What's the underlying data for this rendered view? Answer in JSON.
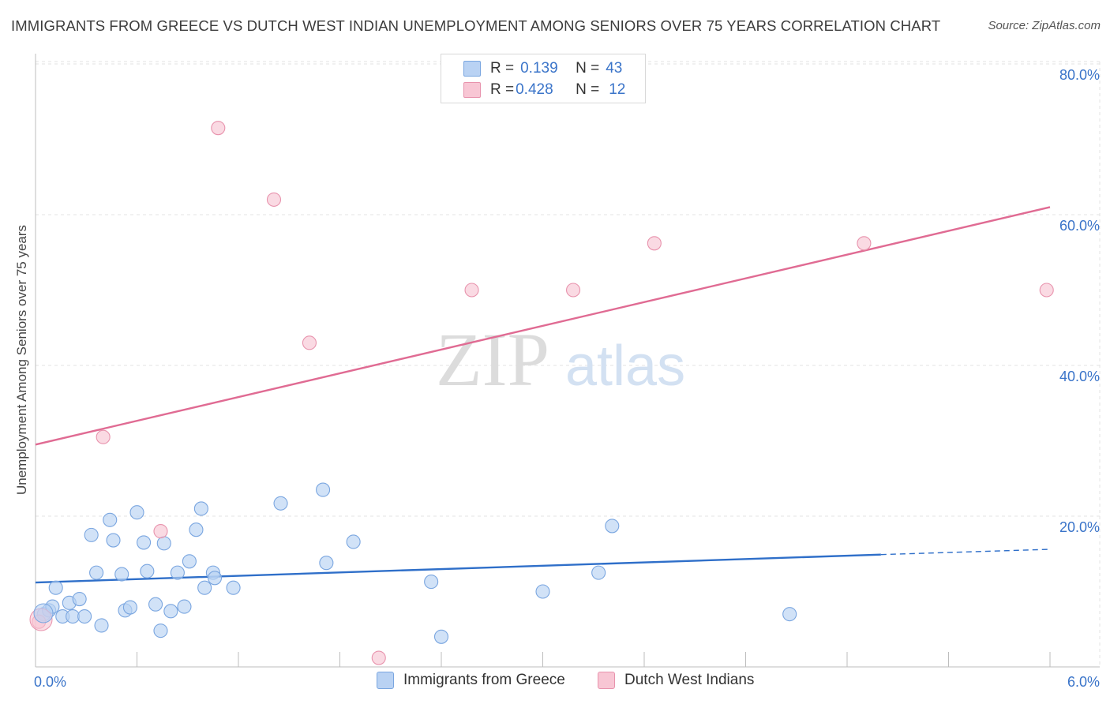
{
  "title": "IMMIGRANTS FROM GREECE VS DUTCH WEST INDIAN UNEMPLOYMENT AMONG SENIORS OVER 75 YEARS CORRELATION CHART",
  "source": "Source: ZipAtlas.com",
  "watermark": {
    "zip": "ZIP",
    "atlas": "atlas"
  },
  "legend": {
    "series1": {
      "r_label": "R = ",
      "r_value": "0.139",
      "n_label": "N = ",
      "n_value": "43"
    },
    "series2": {
      "r_label": "R = ",
      "r_value": "0.428",
      "n_label": "N = ",
      "n_value": "12"
    }
  },
  "bottom_legend": {
    "series1": "Immigrants from Greece",
    "series2": "Dutch West Indians"
  },
  "colors": {
    "blue_fill": "#b9d2f3",
    "blue_stroke": "#7aa6e0",
    "blue_line": "#2f6fc9",
    "pink_fill": "#f8c6d4",
    "pink_stroke": "#e893ad",
    "pink_line": "#e06b93",
    "axis_text": "#3a74c9",
    "grid": "#e3e3e3"
  },
  "chart_data": {
    "type": "scatter",
    "title": "IMMIGRANTS FROM GREECE VS DUTCH WEST INDIAN UNEMPLOYMENT AMONG SENIORS OVER 75 YEARS CORRELATION CHART",
    "xlabel": "",
    "ylabel": "Unemployment Among Seniors over 75 years",
    "xlim": [
      0,
      6.2
    ],
    "ylim": [
      0,
      82
    ],
    "x_ticks": [
      0,
      0.6,
      1.2,
      1.8,
      2.4,
      3.0,
      3.6,
      4.2,
      4.8,
      5.4,
      6.0
    ],
    "x_tick_labels": [
      {
        "value": 0,
        "label": "0.0%"
      },
      {
        "value": 6.0,
        "label": "6.0%"
      }
    ],
    "y_ticks": [
      {
        "value": 20,
        "label": "20.0%"
      },
      {
        "value": 40,
        "label": "40.0%"
      },
      {
        "value": 60,
        "label": "60.0%"
      },
      {
        "value": 80,
        "label": "80.0%"
      }
    ],
    "series": [
      {
        "name": "Immigrants from Greece",
        "color": "blue",
        "points": [
          [
            0.05,
            7.0
          ],
          [
            0.08,
            7.5
          ],
          [
            0.1,
            8.0
          ],
          [
            0.12,
            10.5
          ],
          [
            0.16,
            6.7
          ],
          [
            0.2,
            8.5
          ],
          [
            0.22,
            6.7
          ],
          [
            0.26,
            9.0
          ],
          [
            0.29,
            6.7
          ],
          [
            0.33,
            17.5
          ],
          [
            0.36,
            12.5
          ],
          [
            0.39,
            5.5
          ],
          [
            0.44,
            19.5
          ],
          [
            0.46,
            16.8
          ],
          [
            0.51,
            12.3
          ],
          [
            0.53,
            7.5
          ],
          [
            0.56,
            7.9
          ],
          [
            0.6,
            20.5
          ],
          [
            0.64,
            16.5
          ],
          [
            0.66,
            12.7
          ],
          [
            0.71,
            8.3
          ],
          [
            0.74,
            4.8
          ],
          [
            0.76,
            16.4
          ],
          [
            0.8,
            7.4
          ],
          [
            0.84,
            12.5
          ],
          [
            0.88,
            8.0
          ],
          [
            0.91,
            14.0
          ],
          [
            0.95,
            18.2
          ],
          [
            0.98,
            21.0
          ],
          [
            1.0,
            10.5
          ],
          [
            1.05,
            12.5
          ],
          [
            1.06,
            11.8
          ],
          [
            1.17,
            10.5
          ],
          [
            1.45,
            21.7
          ],
          [
            1.7,
            23.5
          ],
          [
            1.72,
            13.8
          ],
          [
            1.88,
            16.6
          ],
          [
            2.4,
            4.0
          ],
          [
            2.34,
            11.3
          ],
          [
            3.0,
            10.0
          ],
          [
            3.33,
            12.5
          ],
          [
            3.41,
            18.7
          ],
          [
            4.46,
            7.0
          ]
        ]
      },
      {
        "name": "Dutch West Indians",
        "color": "pink",
        "points": [
          [
            0.02,
            6.0
          ],
          [
            0.4,
            30.5
          ],
          [
            0.74,
            18.0
          ],
          [
            1.08,
            71.5
          ],
          [
            1.41,
            62.0
          ],
          [
            1.62,
            43.0
          ],
          [
            2.03,
            1.2
          ],
          [
            2.58,
            50.0
          ],
          [
            3.18,
            50.0
          ],
          [
            3.66,
            56.2
          ],
          [
            4.9,
            56.2
          ],
          [
            5.98,
            50.0
          ]
        ]
      }
    ],
    "trend_lines": [
      {
        "series": "Immigrants from Greece",
        "color": "blue",
        "solid": [
          [
            0,
            11.2
          ],
          [
            5.0,
            14.9
          ]
        ],
        "dashed": [
          [
            5.0,
            14.9
          ],
          [
            6.0,
            15.6
          ]
        ]
      },
      {
        "series": "Dutch West Indians",
        "color": "pink",
        "solid": [
          [
            0,
            29.5
          ],
          [
            6.0,
            61.0
          ]
        ]
      }
    ]
  }
}
